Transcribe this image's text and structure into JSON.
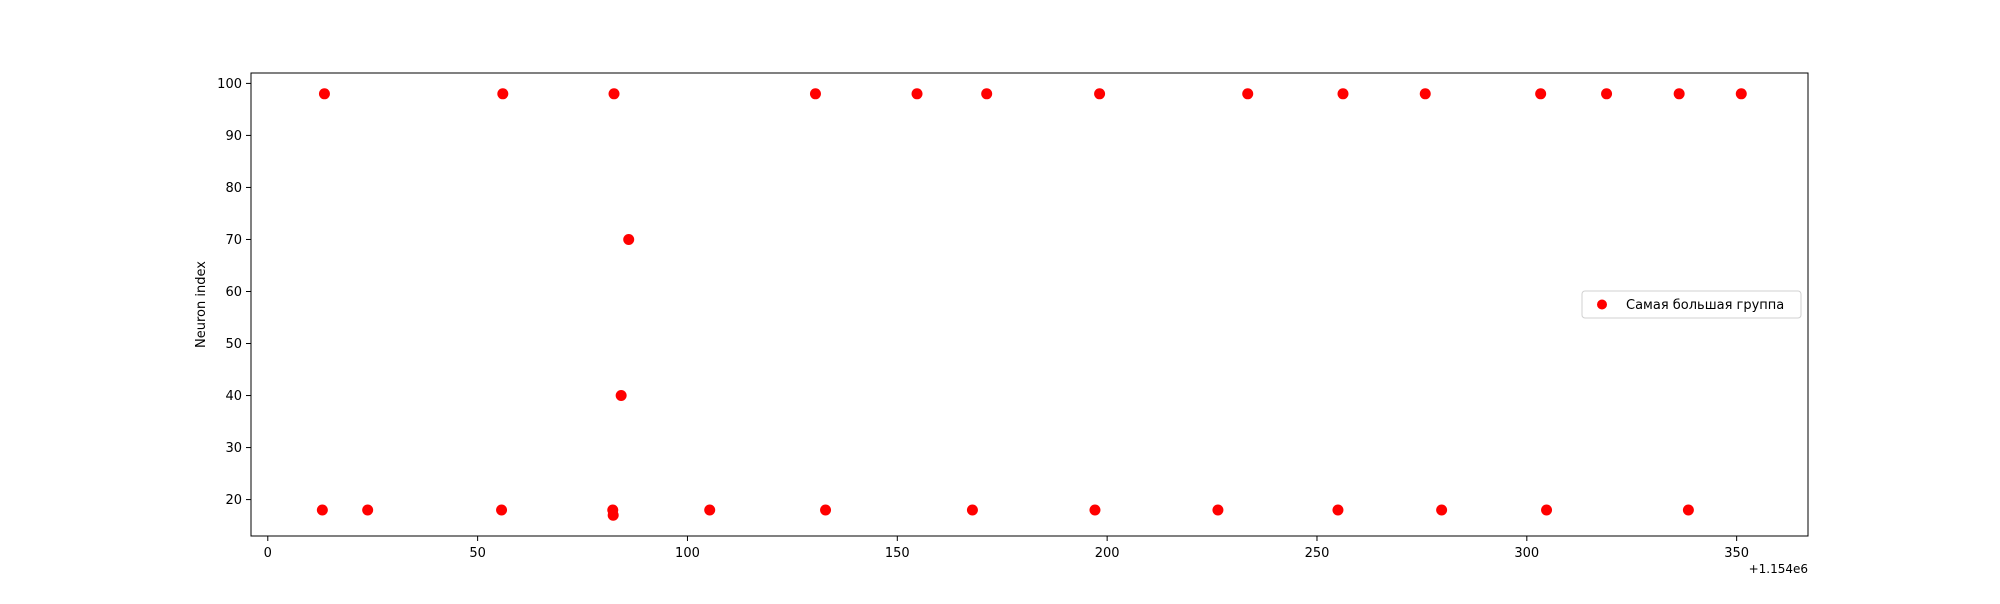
{
  "chart_data": {
    "type": "scatter",
    "title": "",
    "xlabel": "",
    "ylabel": "Neuron index",
    "x_offset_label": "+1.154e6",
    "xlim": [
      -4,
      367
    ],
    "ylim": [
      13,
      102
    ],
    "grid": false,
    "legend_position": "center right",
    "x_ticks": [
      {
        "value": 0,
        "label": "0"
      },
      {
        "value": 50,
        "label": "50"
      },
      {
        "value": 100,
        "label": "100"
      },
      {
        "value": 150,
        "label": "150"
      },
      {
        "value": 200,
        "label": "200"
      },
      {
        "value": 250,
        "label": "250"
      },
      {
        "value": 300,
        "label": "300"
      },
      {
        "value": 350,
        "label": "350"
      }
    ],
    "y_ticks": [
      {
        "value": 20,
        "label": "20"
      },
      {
        "value": 30,
        "label": "30"
      },
      {
        "value": 40,
        "label": "40"
      },
      {
        "value": 50,
        "label": "50"
      },
      {
        "value": 60,
        "label": "60"
      },
      {
        "value": 70,
        "label": "70"
      },
      {
        "value": 80,
        "label": "80"
      },
      {
        "value": 90,
        "label": "90"
      },
      {
        "value": 100,
        "label": "100"
      }
    ],
    "series": [
      {
        "name": "Самая большая группа",
        "color": "#ff0000",
        "x": [
          13.5,
          56,
          82.5,
          130.5,
          154.7,
          171.3,
          198.2,
          233.5,
          256.2,
          275.8,
          303.3,
          319,
          336.3,
          351.1,
          13,
          23.8,
          55.7,
          82.2,
          82.3,
          84.2,
          86,
          105.3,
          132.9,
          167.9,
          197.1,
          226.4,
          255,
          279.7,
          304.7,
          338.5
        ],
        "y": [
          98,
          98,
          98,
          98,
          98,
          98,
          98,
          98,
          98,
          98,
          98,
          98,
          98,
          98,
          18,
          18,
          18,
          18,
          17,
          40,
          70,
          18,
          18,
          18,
          18,
          18,
          18,
          18,
          18,
          18
        ]
      }
    ]
  }
}
